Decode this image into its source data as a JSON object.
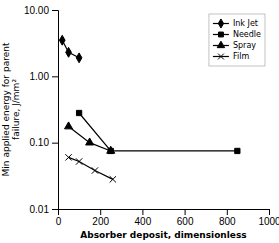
{
  "chart_data": {
    "type": "line",
    "xlabel": "Absorber deposit, dimensionless",
    "ylabel": "Min applied energy for parent\nfailure, J/mm²",
    "series": [
      {
        "name": "Ink Jet",
        "color": "#000000",
        "marker": "diamond",
        "x": [
          20,
          50,
          100
        ],
        "values": [
          3.5,
          2.3,
          1.9
        ]
      },
      {
        "name": "Needle",
        "color": "#000000",
        "marker": "square",
        "x": [
          100,
          250,
          850
        ],
        "values": [
          0.28,
          0.075,
          0.075
        ]
      },
      {
        "name": "Spray",
        "color": "#000000",
        "marker": "triangle",
        "x": [
          50,
          150,
          250
        ],
        "values": [
          0.175,
          0.1,
          0.075
        ]
      },
      {
        "name": "Film",
        "color": "#000000",
        "marker": "x",
        "x": [
          50,
          100,
          175,
          260
        ],
        "values": [
          0.06,
          0.052,
          0.038,
          0.028
        ]
      }
    ],
    "xlim": [
      0,
      1000
    ],
    "ylim": [
      0.01,
      10.0
    ],
    "xticks": [
      0,
      200,
      400,
      600,
      800,
      1000
    ],
    "yticks": [
      0.01,
      {
        "value": 0.1,
        "label": "0.10"
      },
      {
        "value": 1,
        "label": "1.00"
      },
      {
        "value": 10,
        "label": "10.00"
      }
    ],
    "log": "y",
    "legend": "upper right",
    "grid": false
  }
}
